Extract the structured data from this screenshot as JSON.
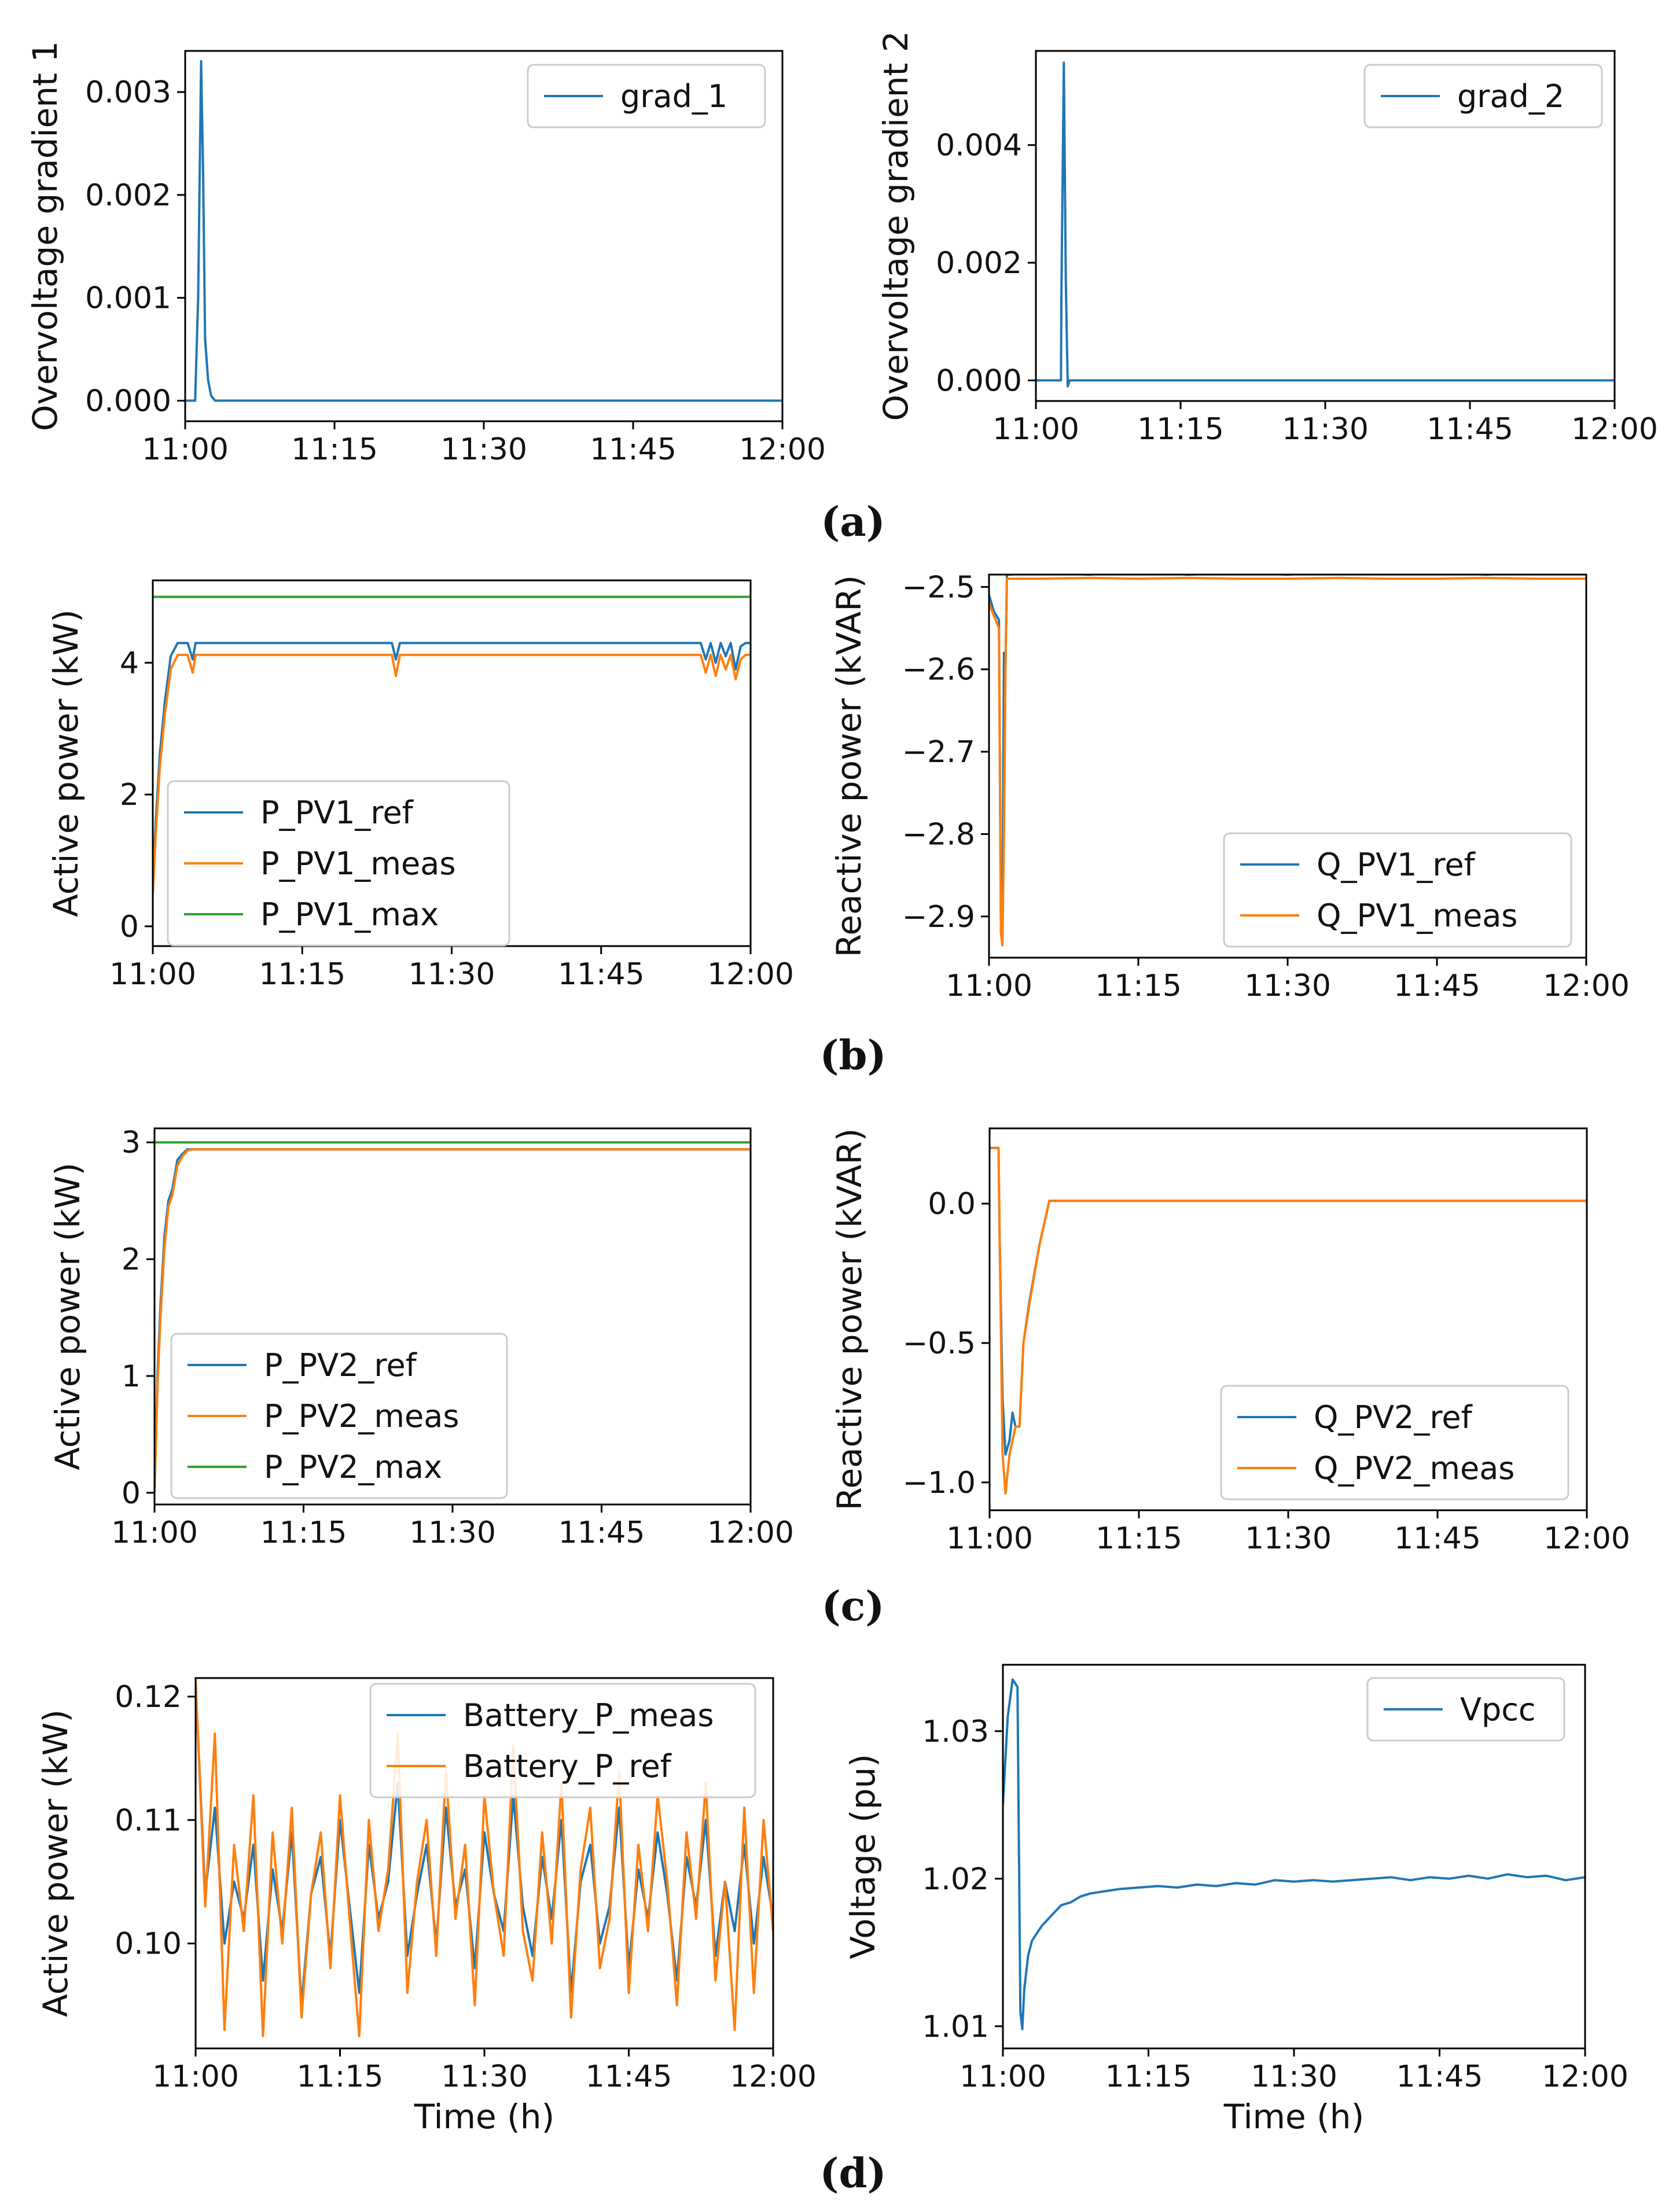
{
  "colors": {
    "blue": "#1f77b4",
    "orange": "#ff7f0e",
    "green": "#2ca02c"
  },
  "panel_labels": [
    "(a)",
    "(b)",
    "(c)",
    "(d)"
  ],
  "chart_data": [
    {
      "id": "a-left",
      "type": "line",
      "panel": "(a)",
      "xlabel": "",
      "ylabel": "Overvoltage gradient 1",
      "x_ticks": [
        "11:00",
        "11:15",
        "11:30",
        "11:45",
        "12:00"
      ],
      "xlim": [
        0,
        60
      ],
      "y_ticks": [
        "0.000",
        "0.001",
        "0.002",
        "0.003"
      ],
      "y_tick_values": [
        0,
        0.001,
        0.002,
        0.003
      ],
      "ylim": [
        -0.0002,
        0.0034
      ],
      "legend": "top-right",
      "series": [
        {
          "name": "grad_1",
          "color": "blue",
          "x": [
            0,
            1.0,
            1.3,
            1.6,
            1.8,
            2.0,
            2.3,
            2.6,
            3.0,
            60
          ],
          "y": [
            0,
            0,
            0.001,
            0.0033,
            0.0022,
            0.0006,
            0.0002,
            5e-05,
            0,
            0
          ]
        }
      ]
    },
    {
      "id": "a-right",
      "type": "line",
      "panel": "(a)",
      "xlabel": "",
      "ylabel": "Overvoltage gradient 2",
      "x_ticks": [
        "11:00",
        "11:15",
        "11:30",
        "11:45",
        "12:00"
      ],
      "xlim": [
        0,
        60
      ],
      "y_ticks": [
        "0.000",
        "0.002",
        "0.004"
      ],
      "y_tick_values": [
        0,
        0.002,
        0.004
      ],
      "ylim": [
        -0.00035,
        0.0056
      ],
      "legend": "top-right",
      "series": [
        {
          "name": "grad_2",
          "color": "blue",
          "x": [
            0,
            2.6,
            2.65,
            2.9,
            3.1,
            3.3,
            3.5,
            3.8,
            60
          ],
          "y": [
            0,
            0,
            0.0016,
            0.0054,
            0.0017,
            -0.0001,
            0,
            0,
            0
          ]
        }
      ]
    },
    {
      "id": "b-left",
      "type": "line",
      "panel": "(b)",
      "xlabel": "",
      "ylabel": "Active power (kW)",
      "x_ticks": [
        "11:00",
        "11:15",
        "11:30",
        "11:45",
        "12:00"
      ],
      "xlim": [
        0,
        60
      ],
      "y_ticks": [
        "0",
        "2",
        "4"
      ],
      "y_tick_values": [
        0,
        2,
        4
      ],
      "ylim": [
        -0.3,
        5.25
      ],
      "legend": "lower-left",
      "series": [
        {
          "name": "P_PV1_ref",
          "color": "blue",
          "x": [
            0,
            0.3,
            0.7,
            1.2,
            1.8,
            2.5,
            3.5,
            4.0,
            4.3,
            4.6,
            5.0,
            24.0,
            24.4,
            24.8,
            55.0,
            55.5,
            56.0,
            56.5,
            57.0,
            57.5,
            58.0,
            58.5,
            59.0,
            59.5,
            60
          ],
          "y": [
            0.6,
            1.6,
            2.6,
            3.4,
            4.1,
            4.3,
            4.3,
            4.05,
            4.3,
            4.3,
            4.3,
            4.3,
            4.05,
            4.3,
            4.3,
            4.05,
            4.3,
            4.0,
            4.3,
            4.1,
            4.3,
            3.9,
            4.25,
            4.3,
            4.3
          ]
        },
        {
          "name": "P_PV1_meas",
          "color": "orange",
          "x": [
            0,
            0.3,
            0.7,
            1.2,
            1.8,
            2.5,
            3.5,
            4.0,
            4.3,
            4.6,
            5.0,
            24.0,
            24.4,
            24.8,
            55.0,
            55.5,
            56.0,
            56.5,
            57.0,
            57.5,
            58.0,
            58.5,
            59.0,
            59.5,
            60
          ],
          "y": [
            0.5,
            1.4,
            2.4,
            3.2,
            3.9,
            4.12,
            4.12,
            3.85,
            4.12,
            4.12,
            4.12,
            4.12,
            3.8,
            4.12,
            4.12,
            3.85,
            4.12,
            3.8,
            4.12,
            3.9,
            4.12,
            3.75,
            4.05,
            4.12,
            4.12
          ]
        },
        {
          "name": "P_PV1_max",
          "color": "green",
          "x": [
            0,
            60
          ],
          "y": [
            5,
            5
          ]
        }
      ]
    },
    {
      "id": "b-right",
      "type": "line",
      "panel": "(b)",
      "xlabel": "",
      "ylabel": "Reactive power (kVAR)",
      "x_ticks": [
        "11:00",
        "11:15",
        "11:30",
        "11:45",
        "12:00"
      ],
      "xlim": [
        0,
        60
      ],
      "y_ticks": [
        "−2.9",
        "−2.8",
        "−2.7",
        "−2.6",
        "−2.5"
      ],
      "y_tick_values": [
        -2.9,
        -2.8,
        -2.7,
        -2.6,
        -2.5
      ],
      "ylim": [
        -2.95,
        -2.485
      ],
      "legend": "lower-right",
      "series": [
        {
          "name": "Q_PV1_ref",
          "color": "blue",
          "x": [
            0,
            0.5,
            1.0,
            1.2,
            1.35,
            1.5,
            1.65,
            1.8,
            2.0,
            5,
            10,
            15,
            20,
            25,
            30,
            35,
            40,
            45,
            50,
            55,
            60
          ],
          "y": [
            -2.51,
            -2.53,
            -2.54,
            -2.92,
            -2.93,
            -2.58,
            -2.6,
            -2.485,
            -2.485,
            -2.483,
            -2.485,
            -2.482,
            -2.485,
            -2.483,
            -2.485,
            -2.482,
            -2.484,
            -2.483,
            -2.485,
            -2.482,
            -2.483
          ]
        },
        {
          "name": "Q_PV1_meas",
          "color": "orange",
          "x": [
            0,
            0.5,
            1.0,
            1.2,
            1.35,
            1.5,
            1.65,
            1.8,
            2.0,
            5,
            10,
            15,
            20,
            25,
            30,
            35,
            40,
            45,
            50,
            55,
            60
          ],
          "y": [
            -2.52,
            -2.535,
            -2.55,
            -2.92,
            -2.935,
            -2.8,
            -2.6,
            -2.49,
            -2.49,
            -2.49,
            -2.489,
            -2.49,
            -2.489,
            -2.49,
            -2.49,
            -2.489,
            -2.49,
            -2.49,
            -2.489,
            -2.49,
            -2.49
          ]
        }
      ]
    },
    {
      "id": "c-left",
      "type": "line",
      "panel": "(c)",
      "xlabel": "",
      "ylabel": "Active power (kW)",
      "x_ticks": [
        "11:00",
        "11:15",
        "11:30",
        "11:45",
        "12:00"
      ],
      "xlim": [
        0,
        60
      ],
      "y_ticks": [
        "0",
        "1",
        "2",
        "3"
      ],
      "y_tick_values": [
        0,
        1,
        2,
        3
      ],
      "ylim": [
        -0.1,
        3.12
      ],
      "legend": "lower-left",
      "series": [
        {
          "name": "P_PV2_ref",
          "color": "blue",
          "x": [
            0,
            0.3,
            0.6,
            1.0,
            1.4,
            1.8,
            2.3,
            2.8,
            3.3,
            3.8,
            60
          ],
          "y": [
            0,
            1.0,
            1.6,
            2.2,
            2.5,
            2.6,
            2.85,
            2.9,
            2.94,
            2.94,
            2.94
          ]
        },
        {
          "name": "P_PV2_meas",
          "color": "orange",
          "x": [
            0,
            0.3,
            0.6,
            1.0,
            1.4,
            1.8,
            2.3,
            2.8,
            3.3,
            3.8,
            60
          ],
          "y": [
            0,
            0.9,
            1.5,
            2.1,
            2.45,
            2.55,
            2.8,
            2.88,
            2.93,
            2.94,
            2.94
          ]
        },
        {
          "name": "P_PV2_max",
          "color": "green",
          "x": [
            0,
            60
          ],
          "y": [
            3,
            3
          ]
        }
      ]
    },
    {
      "id": "c-right",
      "type": "line",
      "panel": "(c)",
      "xlabel": "",
      "ylabel": "Reactive power (kVAR)",
      "x_ticks": [
        "11:00",
        "11:15",
        "11:30",
        "11:45",
        "12:00"
      ],
      "xlim": [
        0,
        60
      ],
      "y_ticks": [
        "−1.0",
        "−0.5",
        "0.0"
      ],
      "y_tick_values": [
        -1.0,
        -0.5,
        0.0
      ],
      "ylim": [
        -1.1,
        0.27
      ],
      "legend": "lower-right",
      "series": [
        {
          "name": "Q_PV2_ref",
          "color": "blue",
          "x": [
            0,
            0.9,
            1.0,
            1.3,
            1.6,
            2.0,
            2.3,
            2.6,
            3.0,
            3.4,
            4.0,
            5.0,
            6.0,
            60
          ],
          "y": [
            0.2,
            0.2,
            -0.1,
            -0.7,
            -0.9,
            -0.85,
            -0.75,
            -0.8,
            -0.8,
            -0.5,
            -0.35,
            -0.15,
            0.01,
            0.01
          ]
        },
        {
          "name": "Q_PV2_meas",
          "color": "orange",
          "x": [
            0,
            0.9,
            1.0,
            1.3,
            1.6,
            2.0,
            2.3,
            2.6,
            3.0,
            3.4,
            4.0,
            5.0,
            6.0,
            60
          ],
          "y": [
            0.2,
            0.2,
            -0.1,
            -0.9,
            -1.04,
            -0.9,
            -0.85,
            -0.8,
            -0.8,
            -0.5,
            -0.36,
            -0.15,
            0.01,
            0.01
          ]
        }
      ]
    },
    {
      "id": "d-left",
      "type": "line",
      "panel": "(d)",
      "xlabel": "Time (h)",
      "ylabel": "Active power (kW)",
      "x_ticks": [
        "11:00",
        "11:15",
        "11:30",
        "11:45",
        "12:00"
      ],
      "xlim": [
        0,
        60
      ],
      "y_ticks": [
        "0.10",
        "0.11",
        "0.12"
      ],
      "y_tick_values": [
        0.1,
        0.11,
        0.12
      ],
      "ylim": [
        0.0915,
        0.1215
      ],
      "legend": "top-right",
      "series": [
        {
          "name": "Battery_P_meas",
          "color": "blue",
          "x": [
            0,
            1,
            2,
            3,
            4,
            5,
            6,
            7,
            8,
            9,
            10,
            11,
            12,
            13,
            14,
            15,
            16,
            17,
            18,
            19,
            20,
            21,
            22,
            23,
            24,
            25,
            26,
            27,
            28,
            29,
            30,
            31,
            32,
            33,
            34,
            35,
            36,
            37,
            38,
            39,
            40,
            41,
            42,
            43,
            44,
            45,
            46,
            47,
            48,
            49,
            50,
            51,
            52,
            53,
            54,
            55,
            56,
            57,
            58,
            59,
            60
          ],
          "y": [
            0.121,
            0.104,
            0.111,
            0.1,
            0.105,
            0.102,
            0.108,
            0.097,
            0.106,
            0.101,
            0.109,
            0.095,
            0.104,
            0.107,
            0.099,
            0.11,
            0.103,
            0.096,
            0.108,
            0.102,
            0.105,
            0.113,
            0.099,
            0.104,
            0.108,
            0.1,
            0.111,
            0.103,
            0.106,
            0.098,
            0.109,
            0.104,
            0.101,
            0.112,
            0.103,
            0.099,
            0.107,
            0.102,
            0.11,
            0.096,
            0.105,
            0.108,
            0.1,
            0.103,
            0.111,
            0.098,
            0.106,
            0.102,
            0.109,
            0.104,
            0.097,
            0.107,
            0.103,
            0.11,
            0.099,
            0.105,
            0.101,
            0.108,
            0.1,
            0.107,
            0.102
          ]
        },
        {
          "name": "Battery_P_ref",
          "color": "orange",
          "x": [
            0,
            1,
            2,
            3,
            4,
            5,
            6,
            7,
            8,
            9,
            10,
            11,
            12,
            13,
            14,
            15,
            16,
            17,
            18,
            19,
            20,
            21,
            22,
            23,
            24,
            25,
            26,
            27,
            28,
            29,
            30,
            31,
            32,
            33,
            34,
            35,
            36,
            37,
            38,
            39,
            40,
            41,
            42,
            43,
            44,
            45,
            46,
            47,
            48,
            49,
            50,
            51,
            52,
            53,
            54,
            55,
            56,
            57,
            58,
            59,
            60
          ],
          "y": [
            0.1213,
            0.103,
            0.117,
            0.093,
            0.108,
            0.101,
            0.112,
            0.0925,
            0.109,
            0.1,
            0.111,
            0.094,
            0.104,
            0.109,
            0.098,
            0.112,
            0.102,
            0.0925,
            0.11,
            0.101,
            0.106,
            0.117,
            0.096,
            0.105,
            0.11,
            0.099,
            0.114,
            0.102,
            0.108,
            0.095,
            0.112,
            0.104,
            0.099,
            0.116,
            0.101,
            0.097,
            0.109,
            0.1,
            0.113,
            0.094,
            0.106,
            0.111,
            0.098,
            0.102,
            0.114,
            0.096,
            0.108,
            0.101,
            0.112,
            0.105,
            0.095,
            0.109,
            0.102,
            0.113,
            0.097,
            0.105,
            0.093,
            0.111,
            0.096,
            0.11,
            0.101
          ]
        }
      ]
    },
    {
      "id": "d-right",
      "type": "line",
      "panel": "(d)",
      "xlabel": "Time (h)",
      "ylabel": "Voltage (pu)",
      "x_ticks": [
        "11:00",
        "11:15",
        "11:30",
        "11:45",
        "12:00"
      ],
      "xlim": [
        0,
        60
      ],
      "y_ticks": [
        "1.01",
        "1.02",
        "1.03"
      ],
      "y_tick_values": [
        1.01,
        1.02,
        1.03
      ],
      "ylim": [
        1.0085,
        1.0345
      ],
      "legend": "top-right",
      "series": [
        {
          "name": "Vpcc",
          "color": "blue",
          "x": [
            0,
            0.5,
            1.0,
            1.5,
            1.8,
            2.0,
            2.2,
            2.6,
            3.0,
            4,
            5,
            6,
            7,
            8,
            9,
            10,
            12,
            14,
            16,
            18,
            20,
            22,
            24,
            26,
            28,
            30,
            32,
            34,
            36,
            38,
            40,
            42,
            44,
            46,
            48,
            50,
            52,
            54,
            56,
            58,
            60
          ],
          "y": [
            1.025,
            1.031,
            1.0335,
            1.033,
            1.011,
            1.0098,
            1.0125,
            1.0148,
            1.0158,
            1.0168,
            1.0175,
            1.0182,
            1.0184,
            1.0188,
            1.019,
            1.0191,
            1.0193,
            1.0194,
            1.0195,
            1.0194,
            1.0196,
            1.0195,
            1.0197,
            1.0196,
            1.0199,
            1.0198,
            1.0199,
            1.0198,
            1.0199,
            1.02,
            1.0201,
            1.0199,
            1.0201,
            1.02,
            1.0202,
            1.02,
            1.0203,
            1.0201,
            1.0202,
            1.0199,
            1.0201
          ]
        }
      ]
    }
  ]
}
